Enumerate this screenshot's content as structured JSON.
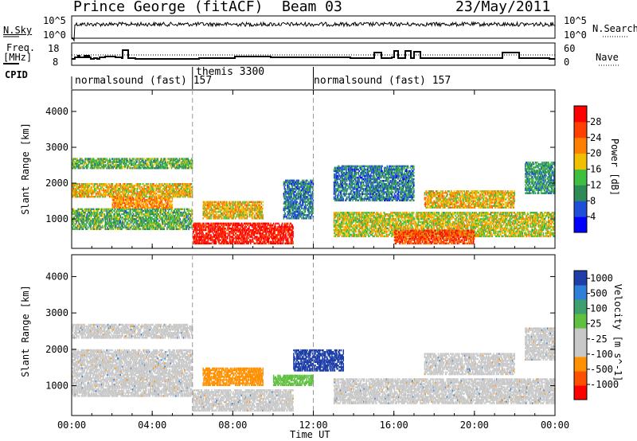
{
  "header": {
    "station": "Prince George (fitACF)",
    "beam": "Beam 03",
    "date": "23/May/2011"
  },
  "panels": {
    "nsky_label": "N.Sky",
    "nsky_ticks": [
      "10^5",
      "10^0"
    ],
    "nsearch_label": "N.Search",
    "nsearch_ticks": [
      "10^5",
      "10^0"
    ],
    "freq_label_1": "Freq.",
    "freq_label_2": "[MHz]",
    "freq_ticks": [
      "18",
      "8"
    ],
    "nave_label": "Nave",
    "nave_ticks": [
      "60",
      "0"
    ],
    "cpid_label": "CPID",
    "cpid_segments": [
      {
        "label": "normalsound (fast) 157",
        "start_hour": 0.0
      },
      {
        "label": "themis 3300",
        "start_hour": 6.0
      },
      {
        "label": "normalsound (fast) 157",
        "start_hour": 12.0
      }
    ]
  },
  "chart_data": [
    {
      "type": "heatmap",
      "title": "",
      "xlabel": "Time UT",
      "ylabel": "Slant Range [km]",
      "x_range_hours": [
        0,
        24
      ],
      "xticks": [
        "00:00",
        "04:00",
        "08:00",
        "12:00",
        "16:00",
        "20:00",
        "00:00"
      ],
      "y_range_km": [
        180,
        4600
      ],
      "yticks": [
        "1000",
        "2000",
        "3000",
        "4000"
      ],
      "colorbar_label": "Power [dB]",
      "colorbar_ticks": [
        "4",
        "8",
        "12",
        "16",
        "20",
        "24",
        "28"
      ],
      "colorbar_range": [
        0,
        30
      ],
      "colors": [
        "#0000ff",
        "#1f4fd8",
        "#2e8b57",
        "#3fbf3f",
        "#f0c000",
        "#ff8000",
        "#ff4000",
        "#ff0000"
      ],
      "echo_bands": [
        {
          "t0": 0.0,
          "t1": 6.0,
          "r0": 2400,
          "r1": 2700,
          "level": 12
        },
        {
          "t0": 0.0,
          "t1": 6.0,
          "r0": 1600,
          "r1": 2000,
          "level": 18
        },
        {
          "t0": 0.0,
          "t1": 6.0,
          "r0": 700,
          "r1": 1300,
          "level": 12
        },
        {
          "t0": 2.0,
          "t1": 5.0,
          "r0": 1300,
          "r1": 1600,
          "level": 20
        },
        {
          "t0": 6.0,
          "t1": 11.0,
          "r0": 300,
          "r1": 900,
          "level": 28
        },
        {
          "t0": 6.5,
          "t1": 9.5,
          "r0": 1000,
          "r1": 1500,
          "level": 18
        },
        {
          "t0": 10.5,
          "t1": 12.0,
          "r0": 1000,
          "r1": 2100,
          "level": 8
        },
        {
          "t0": 13.0,
          "t1": 17.0,
          "r0": 1500,
          "r1": 2500,
          "level": 8
        },
        {
          "t0": 13.0,
          "t1": 24.0,
          "r0": 500,
          "r1": 1200,
          "level": 16
        },
        {
          "t0": 16.0,
          "t1": 20.0,
          "r0": 300,
          "r1": 700,
          "level": 24
        },
        {
          "t0": 17.5,
          "t1": 22.0,
          "r0": 1300,
          "r1": 1800,
          "level": 18
        },
        {
          "t0": 22.5,
          "t1": 24.0,
          "r0": 1700,
          "r1": 2600,
          "level": 10
        }
      ]
    },
    {
      "type": "heatmap",
      "title": "",
      "xlabel": "Time UT",
      "ylabel": "Slant Range [km]",
      "x_range_hours": [
        0,
        24
      ],
      "xticks": [
        "00:00",
        "04:00",
        "08:00",
        "12:00",
        "16:00",
        "20:00",
        "00:00"
      ],
      "y_range_km": [
        180,
        4600
      ],
      "yticks": [
        "1000",
        "2000",
        "3000",
        "4000"
      ],
      "colorbar_label": "Velocity [m s^-1]",
      "colorbar_ticks": [
        "1000",
        "500",
        "100",
        "25",
        "-25",
        "-100",
        "-500",
        "-1000"
      ],
      "colors": [
        "#1e3fa8",
        "#2e7fd8",
        "#3f9f6f",
        "#60c040",
        "#c8c8c8",
        "#c8c8c8",
        "#ff9000",
        "#ff5000",
        "#ff0000"
      ],
      "echo_bands": [
        {
          "t0": 0.0,
          "t1": 6.0,
          "r0": 2300,
          "r1": 2700,
          "level": 0
        },
        {
          "t0": 0.0,
          "t1": 6.0,
          "r0": 700,
          "r1": 2000,
          "level": 0
        },
        {
          "t0": 6.5,
          "t1": 9.5,
          "r0": 1000,
          "r1": 1500,
          "level": -200
        },
        {
          "t0": 6.0,
          "t1": 11.0,
          "r0": 300,
          "r1": 900,
          "level": 0
        },
        {
          "t0": 10.0,
          "t1": 12.0,
          "r0": 1000,
          "r1": 1300,
          "level": 150
        },
        {
          "t0": 11.0,
          "t1": 13.5,
          "r0": 1400,
          "r1": 2000,
          "level": 700
        },
        {
          "t0": 13.0,
          "t1": 24.0,
          "r0": 500,
          "r1": 1200,
          "level": 0
        },
        {
          "t0": 17.5,
          "t1": 22.0,
          "r0": 1300,
          "r1": 1900,
          "level": 0
        },
        {
          "t0": 22.5,
          "t1": 24.0,
          "r0": 1700,
          "r1": 2600,
          "level": 0
        }
      ]
    }
  ]
}
